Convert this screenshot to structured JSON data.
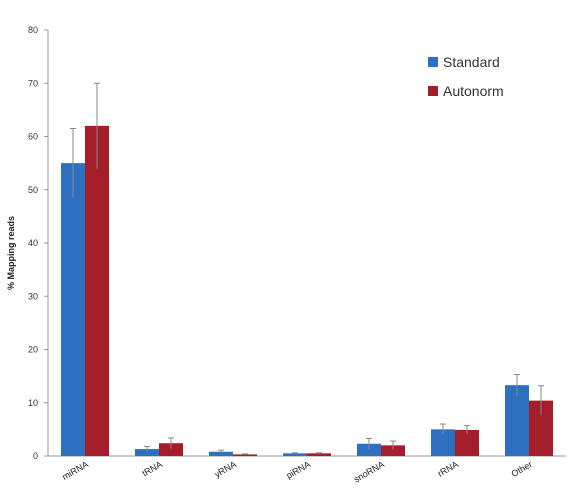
{
  "chart_data": {
    "type": "bar",
    "title": "",
    "xlabel": "",
    "ylabel": "% Mapping reads",
    "ylim": [
      0,
      80
    ],
    "yticks": [
      0,
      10,
      20,
      30,
      40,
      50,
      60,
      70,
      80
    ],
    "grid": false,
    "legend_position": "top-right",
    "categories": [
      "miRNA",
      "tRNA",
      "yRNA",
      "piRNA",
      "snoRNA",
      "rRNA",
      "Other"
    ],
    "series": [
      {
        "name": "Standard",
        "color": "#2e6fc0",
        "values": [
          55,
          1.3,
          0.8,
          0.5,
          2.3,
          5.0,
          13.3
        ],
        "errors": [
          6.5,
          0.5,
          0.3,
          0.1,
          1.0,
          1.0,
          2.0
        ]
      },
      {
        "name": "Autonorm",
        "color": "#a31d2a",
        "values": [
          62,
          2.4,
          0.3,
          0.5,
          2.0,
          4.9,
          10.4
        ],
        "errors": [
          8.0,
          1.0,
          0.1,
          0.1,
          0.8,
          0.8,
          2.8
        ]
      }
    ]
  }
}
